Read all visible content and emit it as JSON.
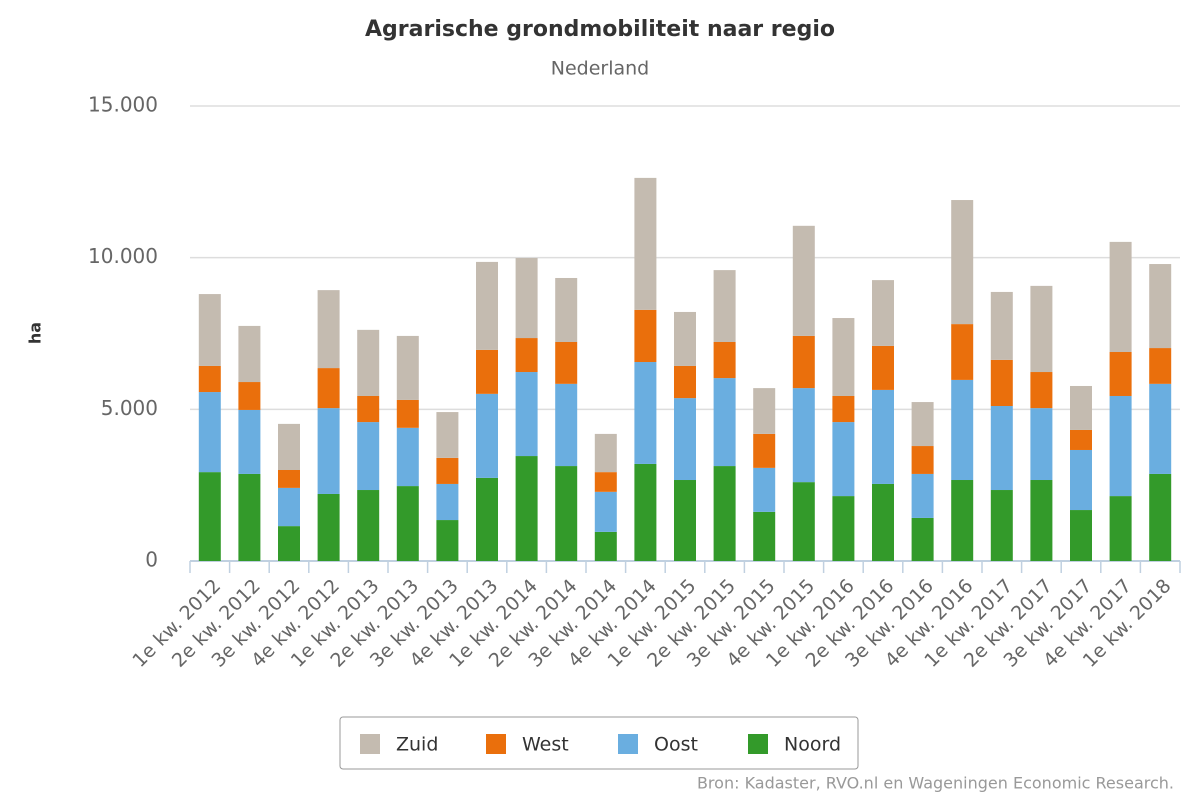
{
  "chart_data": {
    "type": "stacked-bar",
    "title": "Agrarische grondmobiliteit naar regio",
    "subtitle": "Nederland",
    "y_label": "ha",
    "source": "Bron: Kadaster, RVO.nl en Wageningen Economic Research.",
    "categories": [
      "1e kw. 2012",
      "2e kw. 2012",
      "3e kw. 2012",
      "4e kw. 2012",
      "1e kw. 2013",
      "2e kw. 2013",
      "3e kw. 2013",
      "4e kw. 2013",
      "1e kw. 2014",
      "2e kw. 2014",
      "3e kw. 2014",
      "4e kw. 2014",
      "1e kw. 2015",
      "2e kw. 2015",
      "3e kw. 2015",
      "4e kw. 2015",
      "1e kw. 2016",
      "2e kw. 2016",
      "3e kw. 2016",
      "4e kw. 2016",
      "1e kw. 2017",
      "2e kw. 2017",
      "3e kw. 2017",
      "4e kw. 2017",
      "1e kw. 2018"
    ],
    "series": [
      {
        "name": "Noord",
        "color": "#339a2a",
        "values": [
          2930,
          2870,
          1150,
          2210,
          2340,
          2470,
          1350,
          2740,
          3460,
          3130,
          960,
          3200,
          2670,
          3130,
          1620,
          2600,
          2140,
          2540,
          1420,
          2670,
          2340,
          2670,
          1680,
          2140,
          2870
        ]
      },
      {
        "name": "Oost",
        "color": "#6aaee0",
        "values": [
          2640,
          2110,
          1260,
          2830,
          2240,
          1920,
          1190,
          2770,
          2770,
          2710,
          1320,
          3360,
          2700,
          2900,
          1450,
          3100,
          2440,
          3100,
          1450,
          3300,
          2770,
          2370,
          1980,
          3300,
          2970
        ]
      },
      {
        "name": "West",
        "color": "#ea6f0c",
        "values": [
          860,
          920,
          590,
          1320,
          860,
          920,
          860,
          1450,
          1120,
          1380,
          650,
          1720,
          1060,
          1190,
          1120,
          1720,
          860,
          1450,
          920,
          1840,
          1520,
          1190,
          660,
          1450,
          1180
        ]
      },
      {
        "name": "Zuid",
        "color": "#c4bbb0",
        "values": [
          2370,
          1850,
          1520,
          2570,
          2180,
          2110,
          1510,
          2900,
          2640,
          2110,
          1260,
          4350,
          1780,
          2370,
          1510,
          3630,
          2570,
          2170,
          1450,
          4090,
          2240,
          2840,
          1450,
          3630,
          2770
        ]
      }
    ],
    "ylim": [
      0,
      15000
    ],
    "yticks": [
      0,
      {
        "value": 5000,
        "label": "5.000"
      },
      {
        "value": 10000,
        "label": "10.000"
      },
      {
        "value": 15000,
        "label": "15.000"
      }
    ],
    "grid": true
  }
}
